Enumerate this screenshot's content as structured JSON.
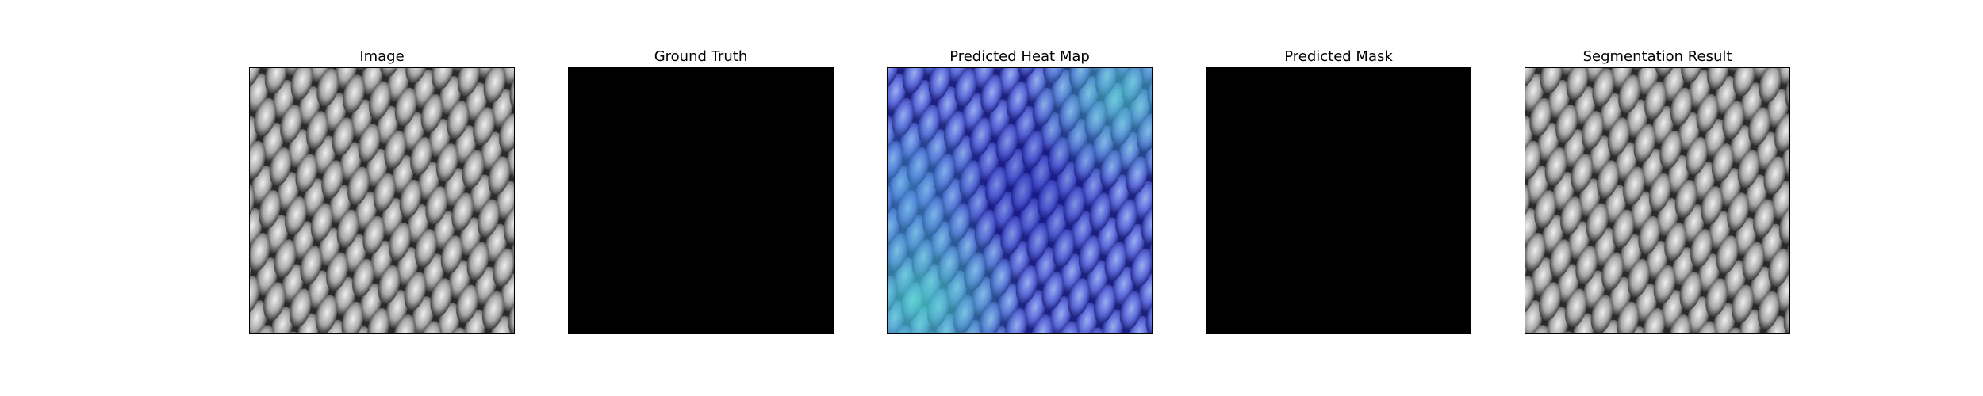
{
  "figure": {
    "panels": [
      {
        "title": "Image",
        "content": "grayscale-mesh-texture"
      },
      {
        "title": "Ground Truth",
        "content": "black-mask"
      },
      {
        "title": "Predicted Heat Map",
        "content": "blue-teal-heatmap-overlay"
      },
      {
        "title": "Predicted Mask",
        "content": "black-mask"
      },
      {
        "title": "Segmentation Result",
        "content": "grayscale-mesh-texture"
      }
    ]
  },
  "colors": {
    "background": "#ffffff",
    "mask": "#000000",
    "heatmap_low": "#2a2ac8",
    "heatmap_high": "#4fe0c8",
    "texture_dark": "#1e1e1e",
    "texture_light": "#e6e6e6"
  }
}
